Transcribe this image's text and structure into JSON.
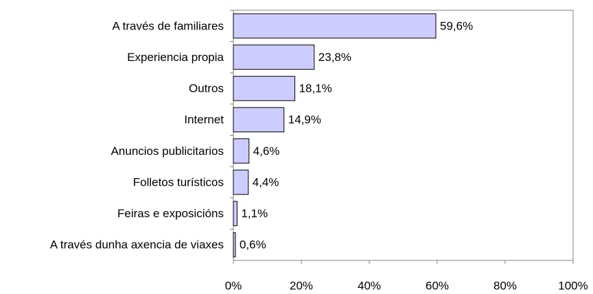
{
  "chart_data": {
    "type": "hbar",
    "categories": [
      "A través de familiares",
      "Experiencia propia",
      "Outros",
      "Internet",
      "Anuncios publicitarios",
      "Folletos turísticos",
      "Feiras e exposicións",
      "A través dunha axencia de viaxes"
    ],
    "values": [
      59.6,
      23.8,
      18.1,
      14.9,
      4.6,
      4.4,
      1.1,
      0.6
    ],
    "value_labels": [
      "59,6%",
      "23,8%",
      "18,1%",
      "14,9%",
      "4,6%",
      "4,4%",
      "1,1%",
      "0,6%"
    ],
    "color": "#ccccff",
    "xlim": [
      0,
      100
    ],
    "xticks": [
      {
        "value": 0,
        "label": "0%"
      },
      {
        "value": 20,
        "label": "20%"
      },
      {
        "value": 40,
        "label": "40%"
      },
      {
        "value": 60,
        "label": "60%"
      },
      {
        "value": 80,
        "label": "80%"
      },
      {
        "value": 100,
        "label": "100%"
      }
    ],
    "grid": false
  }
}
